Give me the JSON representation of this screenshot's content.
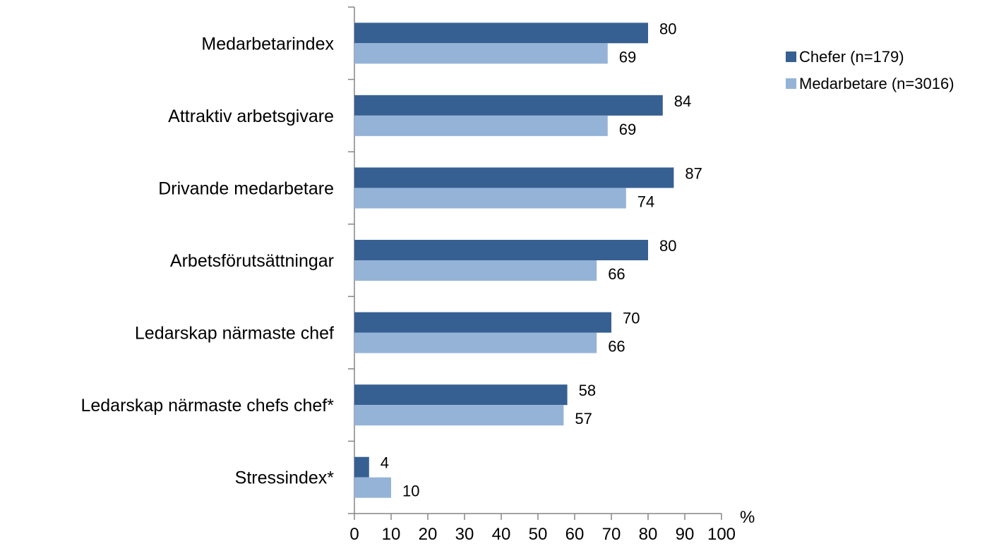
{
  "chart_data": {
    "type": "bar",
    "orientation": "horizontal",
    "categories": [
      "Medarbetarindex",
      "Attraktiv arbetsgivare",
      "Drivande medarbetare",
      "Arbetsförutsättningar",
      "Ledarskap närmaste chef",
      "Ledarskap närmaste chefs chef*",
      "Stressindex*"
    ],
    "series": [
      {
        "name": "Chefer (n=179)",
        "values": [
          80,
          84,
          87,
          80,
          70,
          58,
          4
        ],
        "color": "#376092"
      },
      {
        "name": "Medarbetare (n=3016)",
        "values": [
          69,
          69,
          74,
          66,
          66,
          57,
          10
        ],
        "color": "#95b3d7"
      }
    ],
    "xlim": [
      0,
      100
    ],
    "xticks": [
      "0",
      "10",
      "20",
      "30",
      "40",
      "50",
      "60",
      "70",
      "80",
      "90",
      "100"
    ],
    "xunit": "%",
    "grid": false,
    "legend_position": "top-right",
    "data_labels": true
  }
}
